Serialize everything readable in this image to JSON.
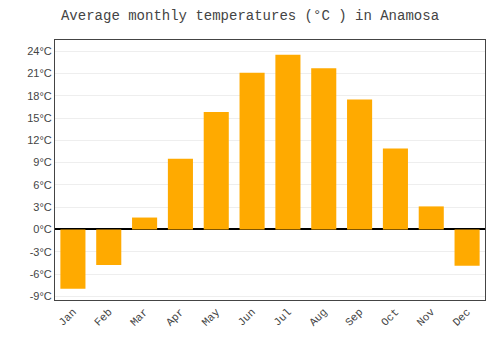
{
  "chart_data": {
    "type": "bar",
    "title": "Average monthly temperatures (°C ) in Anamosa",
    "categories": [
      "Jan",
      "Feb",
      "Mar",
      "Apr",
      "May",
      "Jun",
      "Jul",
      "Aug",
      "Sep",
      "Oct",
      "Nov",
      "Dec"
    ],
    "values": [
      -8.0,
      -4.8,
      1.6,
      9.5,
      15.8,
      21.1,
      23.5,
      21.7,
      17.5,
      10.9,
      3.1,
      -4.9
    ],
    "color": "#FFAA00",
    "ylim": [
      -9.5,
      25.5
    ],
    "yticks": [
      {
        "value": -9,
        "label": "-9°C"
      },
      {
        "value": -6,
        "label": "-6°C"
      },
      {
        "value": -3,
        "label": "-3°C"
      },
      {
        "value": 0,
        "label": "0°C"
      },
      {
        "value": 3,
        "label": "3°C"
      },
      {
        "value": 6,
        "label": "6°C"
      },
      {
        "value": 9,
        "label": "9°C"
      },
      {
        "value": 12,
        "label": "12°C"
      },
      {
        "value": 15,
        "label": "15°C"
      },
      {
        "value": 18,
        "label": "18°C"
      },
      {
        "value": 21,
        "label": "21°C"
      },
      {
        "value": 24,
        "label": "24°C"
      }
    ],
    "grid": true
  }
}
